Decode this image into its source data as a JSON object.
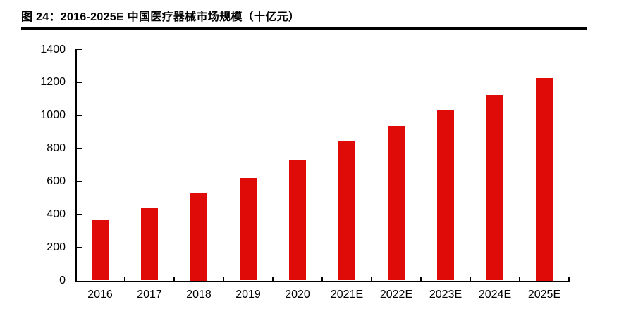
{
  "figure": {
    "label": "图  24：",
    "title": "图  24：2016-2025E 中国医疗器械市场规模（十亿元）"
  },
  "chart_data": {
    "type": "bar",
    "title": "2016-2025E 中国医疗器械市场规模（十亿元）",
    "categories": [
      "2016",
      "2017",
      "2018",
      "2019",
      "2020",
      "2021E",
      "2022E",
      "2023E",
      "2024E",
      "2025E"
    ],
    "values": [
      370,
      440,
      525,
      620,
      725,
      840,
      935,
      1030,
      1125,
      1225
    ],
    "xlabel": "",
    "ylabel": "",
    "ylim": [
      0,
      1400
    ],
    "yticks": [
      0,
      200,
      400,
      600,
      800,
      1000,
      1200,
      1400
    ],
    "grid": false,
    "legend": "none",
    "bar_color": "#DE0B09",
    "axis_color": "#000000",
    "text_color": "#000000"
  }
}
